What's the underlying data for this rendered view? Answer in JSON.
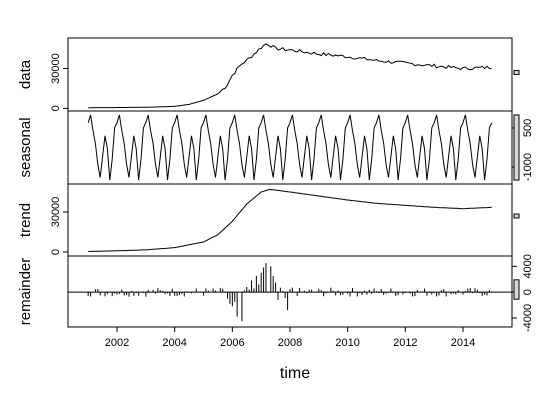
{
  "chart_data": {
    "type": "line",
    "xlabel": "time",
    "x_ticks": [
      2002,
      2004,
      2006,
      2008,
      2010,
      2012,
      2014
    ],
    "xlim": [
      2000.3,
      2015.7
    ],
    "panels": [
      {
        "id": "data",
        "ylabel": "data",
        "ylim": [
          -2000,
          53000
        ],
        "y_ticks": [
          0,
          30000
        ],
        "y_tick_side": "left",
        "key_points": [
          [
            2001.0,
            500
          ],
          [
            2002.0,
            600
          ],
          [
            2003.0,
            800
          ],
          [
            2004.0,
            1500
          ],
          [
            2004.5,
            3000
          ],
          [
            2005.0,
            6000
          ],
          [
            2005.5,
            11000
          ],
          [
            2005.8,
            17000
          ],
          [
            2006.0,
            25000
          ],
          [
            2006.3,
            33000
          ],
          [
            2006.6,
            38000
          ],
          [
            2007.0,
            46000
          ],
          [
            2007.2,
            49000
          ],
          [
            2007.5,
            45000
          ],
          [
            2008.0,
            44000
          ],
          [
            2009.0,
            41000
          ],
          [
            2010.0,
            39000
          ],
          [
            2011.0,
            36000
          ],
          [
            2012.0,
            34000
          ],
          [
            2013.0,
            32000
          ],
          [
            2014.0,
            30000
          ],
          [
            2015.0,
            31000
          ]
        ],
        "scale_bar_range": 3000
      },
      {
        "id": "seasonal",
        "ylabel": "seasonal",
        "ylim": [
          -1650,
          1150
        ],
        "y_ticks": [
          -1000,
          500
        ],
        "y_tick_side": "right",
        "monthly_pattern": [
          700,
          1000,
          400,
          -100,
          -900,
          -1400,
          -600,
          200,
          -300,
          -1500,
          -700,
          500
        ],
        "start_year": 2001,
        "end_year": 2015,
        "scale_bar_range": 2500
      },
      {
        "id": "trend",
        "ylabel": "trend",
        "ylim": [
          -3000,
          51000
        ],
        "y_ticks": [
          0,
          30000
        ],
        "y_tick_side": "left",
        "key_points": [
          [
            2001.0,
            400
          ],
          [
            2002.0,
            900
          ],
          [
            2003.0,
            1600
          ],
          [
            2004.0,
            3300
          ],
          [
            2005.0,
            7500
          ],
          [
            2005.5,
            13000
          ],
          [
            2006.0,
            23000
          ],
          [
            2006.5,
            36000
          ],
          [
            2007.0,
            45000
          ],
          [
            2007.3,
            47000
          ],
          [
            2008.0,
            45000
          ],
          [
            2009.0,
            42000
          ],
          [
            2010.0,
            39000
          ],
          [
            2011.0,
            36500
          ],
          [
            2012.0,
            35000
          ],
          [
            2013.0,
            33500
          ],
          [
            2014.0,
            32500
          ],
          [
            2015.0,
            33500
          ]
        ],
        "scale_bar_range": 3000
      },
      {
        "id": "remainder",
        "ylabel": "remainder",
        "ylim": [
          -5400,
          5600
        ],
        "y_ticks": [
          -4000,
          0,
          4000
        ],
        "y_tick_side": "right",
        "spikes": [
          [
            2005.8,
            -1000
          ],
          [
            2005.9,
            -1800
          ],
          [
            2006.0,
            -2200
          ],
          [
            2006.1,
            -1500
          ],
          [
            2006.2,
            -3800
          ],
          [
            2006.3,
            -4500
          ],
          [
            2006.5,
            800
          ],
          [
            2006.7,
            1800
          ],
          [
            2006.8,
            2500
          ],
          [
            2006.9,
            1200
          ],
          [
            2007.0,
            3000
          ],
          [
            2007.1,
            3800
          ],
          [
            2007.2,
            4500
          ],
          [
            2007.3,
            4000
          ],
          [
            2007.4,
            2500
          ],
          [
            2007.5,
            1500
          ],
          [
            2007.6,
            -1200
          ],
          [
            2007.8,
            -900
          ],
          [
            2007.9,
            -2800
          ],
          [
            2008.1,
            700
          ]
        ],
        "scale_bar_range": 3000
      }
    ],
    "grid": false,
    "legend": "none"
  }
}
